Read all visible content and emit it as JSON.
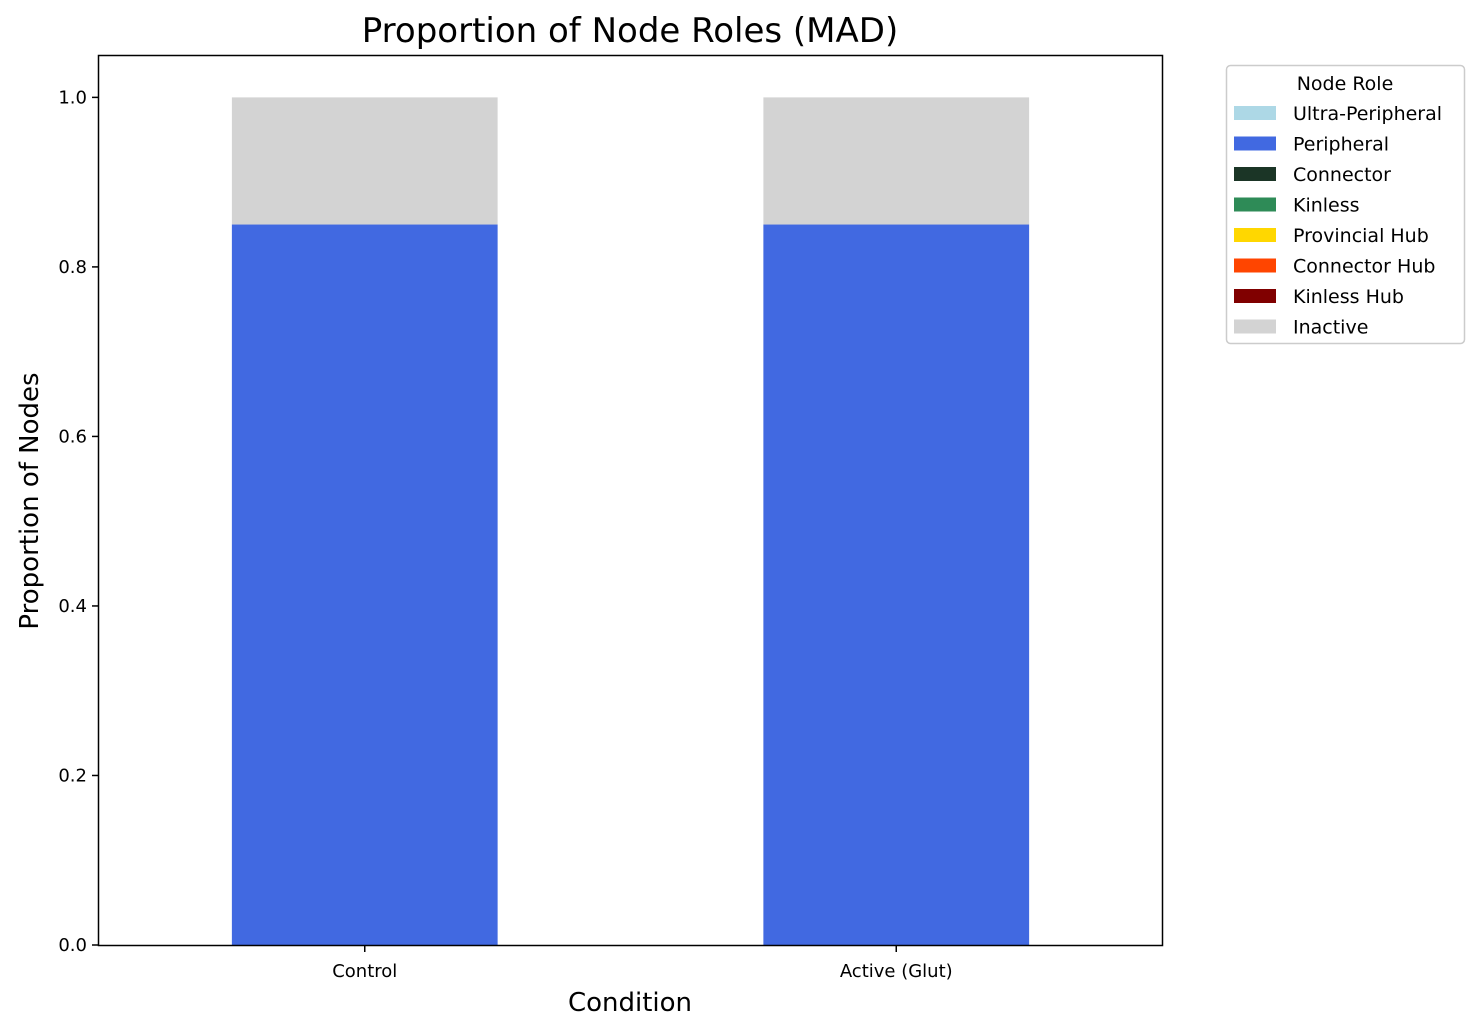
{
  "chart_data": {
    "type": "bar",
    "stacked": true,
    "title": "Proportion of Node Roles (MAD)",
    "xlabel": "Condition",
    "ylabel": "Proportion of Nodes",
    "categories": [
      "Control",
      "Active (Glut)"
    ],
    "ylim": [
      0,
      1.05
    ],
    "yticks": [
      "0.0",
      "0.2",
      "0.4",
      "0.6",
      "0.8",
      "1.0"
    ],
    "grid": false,
    "legend": {
      "title": "Node Role",
      "placement": "outside-top-right"
    },
    "series": [
      {
        "name": "Ultra-Peripheral",
        "color": "#add8e6",
        "values": [
          0,
          0
        ]
      },
      {
        "name": "Peripheral",
        "color": "#4169e1",
        "values": [
          0.85,
          0.85
        ]
      },
      {
        "name": "Connector",
        "color": "#1b3526",
        "values": [
          0,
          0
        ]
      },
      {
        "name": "Kinless",
        "color": "#2e8b57",
        "values": [
          0,
          0
        ]
      },
      {
        "name": "Provincial Hub",
        "color": "#ffd700",
        "values": [
          0,
          0
        ]
      },
      {
        "name": "Connector Hub",
        "color": "#ff4500",
        "values": [
          0,
          0
        ]
      },
      {
        "name": "Kinless Hub",
        "color": "#800000",
        "values": [
          0,
          0
        ]
      },
      {
        "name": "Inactive",
        "color": "#d3d3d3",
        "values": [
          0.15,
          0.15
        ]
      }
    ]
  }
}
